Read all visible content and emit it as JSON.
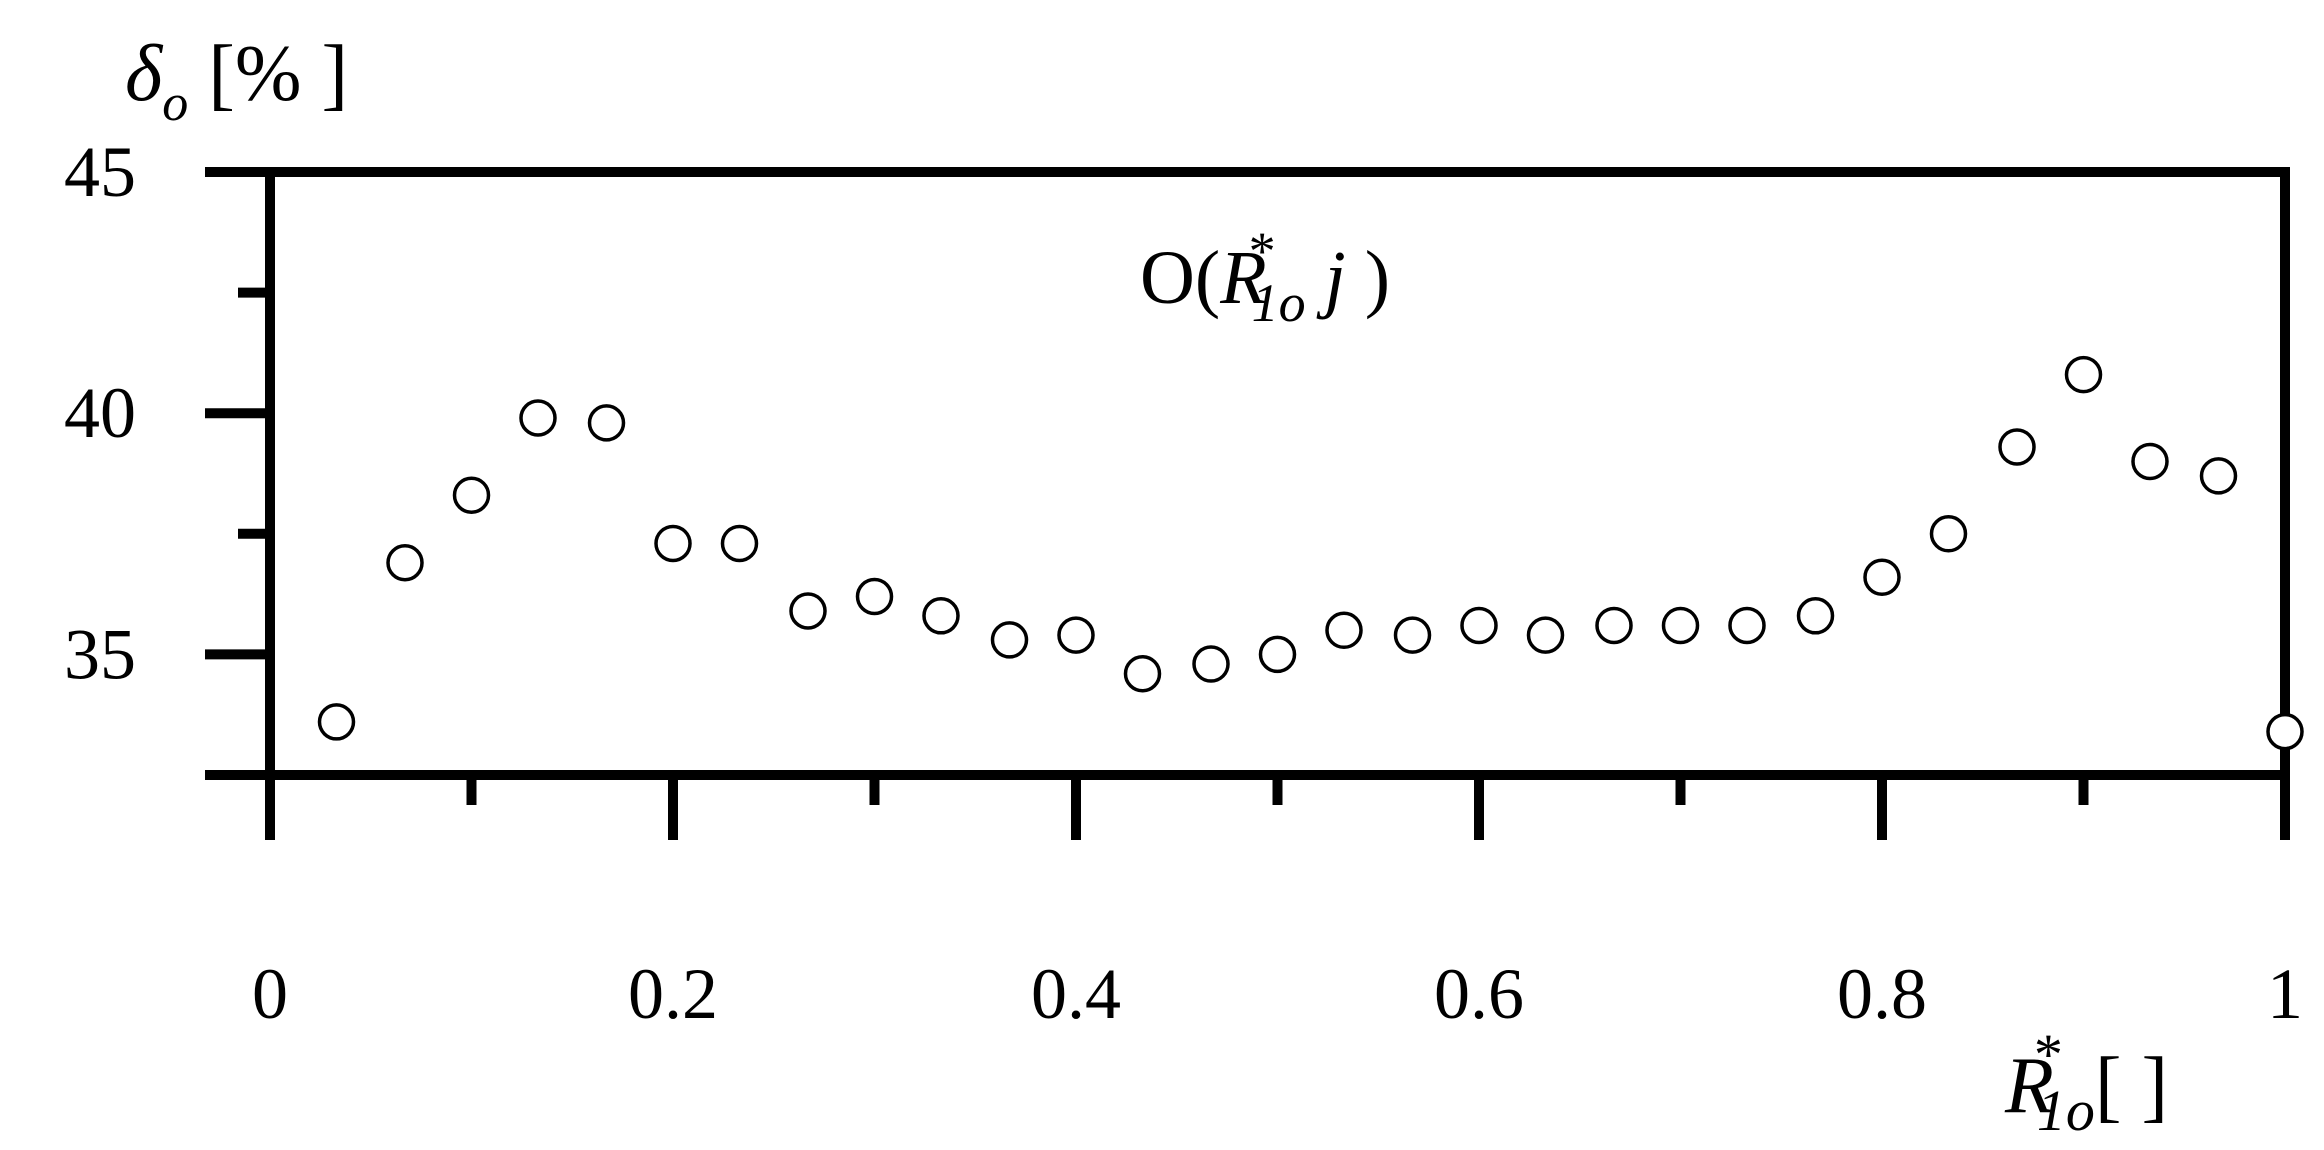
{
  "chart_data": {
    "type": "scatter",
    "marker": "open-circle",
    "grid": false,
    "legend": "none",
    "xlim": [
      0,
      1
    ],
    "ylim": [
      32.5,
      45
    ],
    "x_ticks": [
      0,
      0.2,
      0.4,
      0.6,
      0.8,
      1
    ],
    "x_tick_labels": [
      "0",
      "0.2",
      "0.4",
      "0.6",
      "0.8",
      "1"
    ],
    "x_minor_ticks": [
      0.1,
      0.3,
      0.5,
      0.7,
      0.9
    ],
    "y_ticks": [
      35,
      40,
      45
    ],
    "y_tick_labels": [
      "35",
      "40",
      "45"
    ],
    "y_minor_ticks": [
      32.5,
      37.5,
      42.5
    ],
    "ylabel": {
      "symbol": "δ",
      "subscript": "o",
      "unit": " [% ]"
    },
    "xlabel": {
      "symbol": "R",
      "superscript": "*",
      "subscript": "1o",
      "unit": "[ ]"
    },
    "annotation": {
      "prefix": "O(",
      "symbol": "R",
      "superscript": "*",
      "subscript": "1o",
      "suffix_italic": " j",
      "suffix": " )"
    },
    "points": [
      {
        "x": 0.033,
        "y": 33.6
      },
      {
        "x": 0.067,
        "y": 36.9
      },
      {
        "x": 0.1,
        "y": 38.3
      },
      {
        "x": 0.133,
        "y": 39.9
      },
      {
        "x": 0.167,
        "y": 39.8
      },
      {
        "x": 0.2,
        "y": 37.3
      },
      {
        "x": 0.233,
        "y": 37.3
      },
      {
        "x": 0.267,
        "y": 35.9
      },
      {
        "x": 0.3,
        "y": 36.2
      },
      {
        "x": 0.333,
        "y": 35.8
      },
      {
        "x": 0.367,
        "y": 35.3
      },
      {
        "x": 0.4,
        "y": 35.4
      },
      {
        "x": 0.433,
        "y": 34.6
      },
      {
        "x": 0.467,
        "y": 34.8
      },
      {
        "x": 0.5,
        "y": 35.0
      },
      {
        "x": 0.533,
        "y": 35.5
      },
      {
        "x": 0.567,
        "y": 35.4
      },
      {
        "x": 0.6,
        "y": 35.6
      },
      {
        "x": 0.633,
        "y": 35.4
      },
      {
        "x": 0.667,
        "y": 35.6
      },
      {
        "x": 0.7,
        "y": 35.6
      },
      {
        "x": 0.733,
        "y": 35.6
      },
      {
        "x": 0.767,
        "y": 35.8
      },
      {
        "x": 0.8,
        "y": 36.6
      },
      {
        "x": 0.833,
        "y": 37.5
      },
      {
        "x": 0.867,
        "y": 39.3
      },
      {
        "x": 0.9,
        "y": 40.8
      },
      {
        "x": 0.933,
        "y": 39.0
      },
      {
        "x": 0.967,
        "y": 38.7
      },
      {
        "x": 1.0,
        "y": 33.4
      }
    ]
  }
}
